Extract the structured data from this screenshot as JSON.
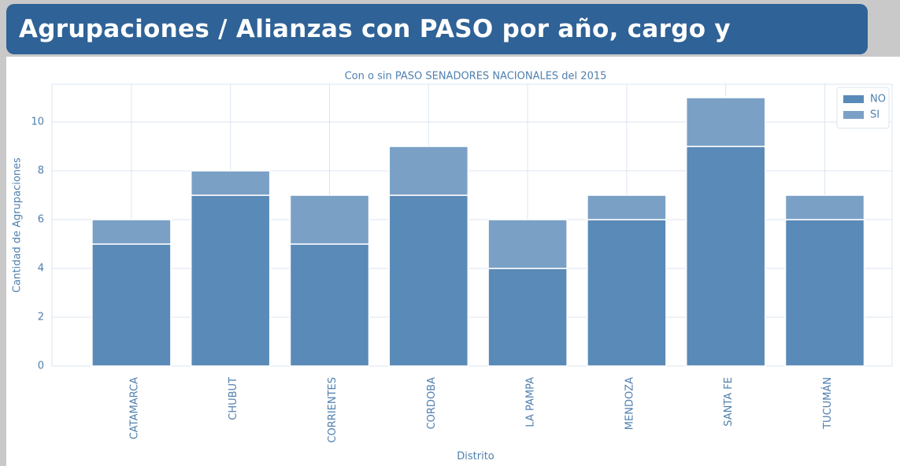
{
  "header": {
    "title": "Agrupaciones / Alianzas con PASO por año, cargo y provincia"
  },
  "chart_data": {
    "type": "stacked_bar",
    "title": "Con o sin PASO SENADORES NACIONALES del 2015",
    "x_label": "Distrito",
    "y_label": "Cantidad de Agrupaciones",
    "categories": [
      "CATAMARCA",
      "CHUBUT",
      "CORRIENTES",
      "CORDOBA",
      "LA PAMPA",
      "MENDOZA",
      "SANTA FE",
      "TUCUMÁN"
    ],
    "series": [
      {
        "name": "NO",
        "color": "#5a8ab7",
        "values": [
          5,
          7,
          5,
          7,
          4,
          6,
          9,
          6
        ]
      },
      {
        "name": "SI",
        "color": "#7aa0c6",
        "values": [
          1,
          1,
          2,
          2,
          2,
          1,
          2,
          1
        ]
      }
    ],
    "ylim": [
      0,
      11.55
    ],
    "yticks": [
      0,
      2,
      4,
      6,
      8,
      10
    ],
    "grid": true,
    "legend": "upper right"
  }
}
